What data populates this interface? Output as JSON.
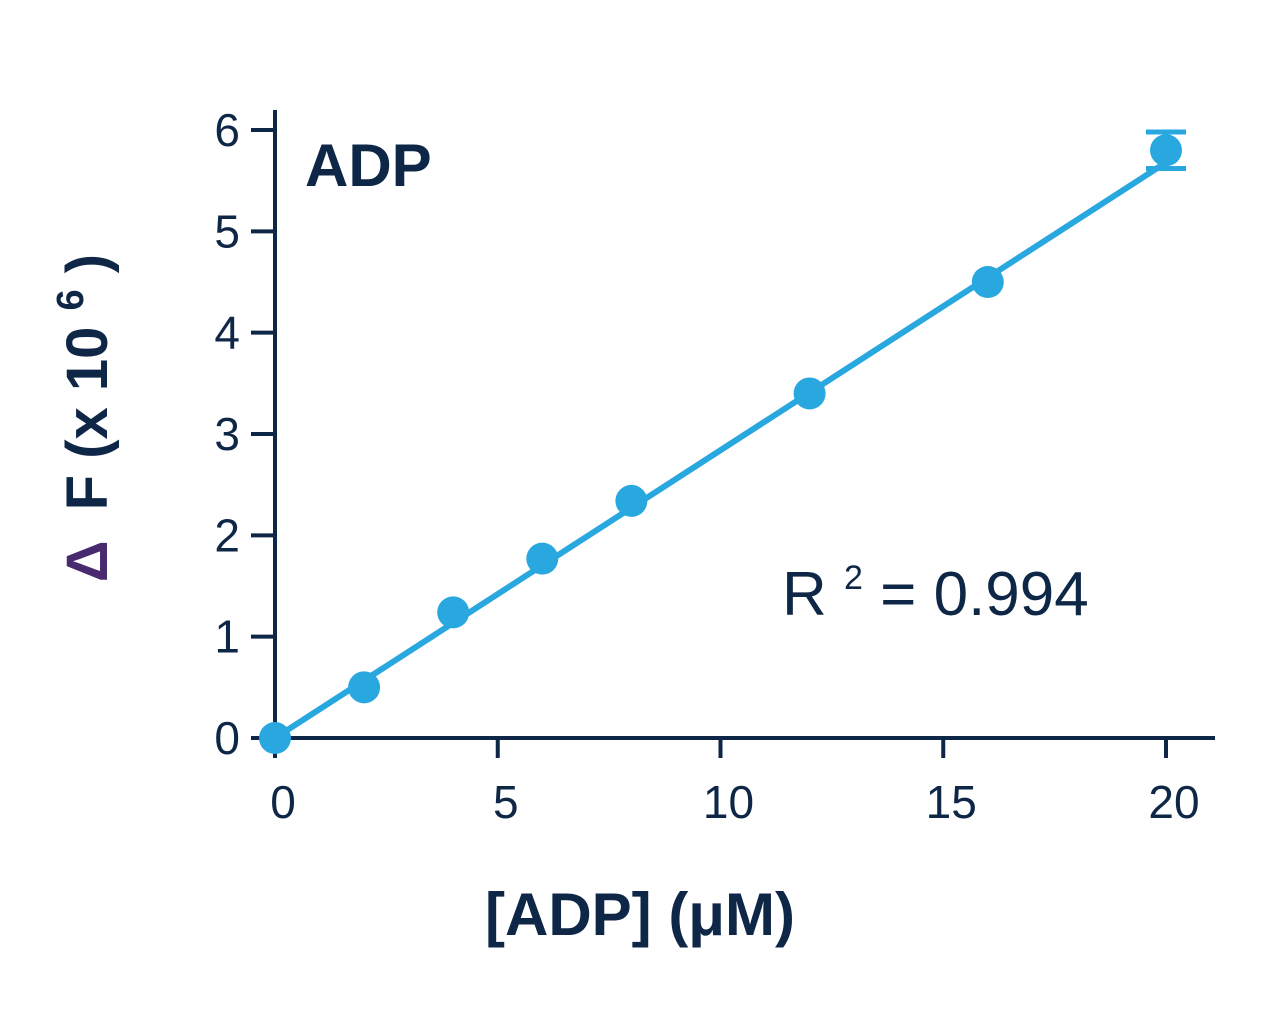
{
  "chart_data": {
    "type": "scatter",
    "title": "ADP",
    "xlabel": "[ADP] (μM)",
    "ylabel": {
      "delta": "Δ",
      "main": "F (x 10",
      "superscript": "6",
      "close": ")"
    },
    "xlim": [
      0,
      21
    ],
    "ylim": [
      0,
      6.2
    ],
    "xticks": [
      0,
      5,
      10,
      15,
      20
    ],
    "xtick_labels": [
      "0",
      "5",
      "10",
      "15",
      "20"
    ],
    "yticks": [
      0,
      1,
      2,
      3,
      4,
      5,
      6
    ],
    "ytick_labels": [
      "0",
      "1",
      "2",
      "3",
      "4",
      "5",
      "6"
    ],
    "grid": false,
    "legend": false,
    "series": [
      {
        "x": [
          0,
          2,
          4,
          6,
          8,
          12,
          16,
          20
        ],
        "y": [
          0,
          0.5,
          1.24,
          1.77,
          2.34,
          3.4,
          4.5,
          5.8
        ],
        "y_error": [
          0,
          0,
          0,
          0,
          0,
          0,
          0,
          0.18
        ]
      }
    ],
    "fit_line": {
      "x": [
        0,
        20
      ],
      "y": [
        0,
        5.68
      ]
    },
    "annotation": {
      "r_label": "R",
      "r_superscript": "2",
      "r_value": "= 0.994"
    },
    "colors": {
      "series": "#29a8e0",
      "axis": "#0f2747",
      "text": "#0f2747",
      "delta": "#4a2a6f"
    }
  }
}
